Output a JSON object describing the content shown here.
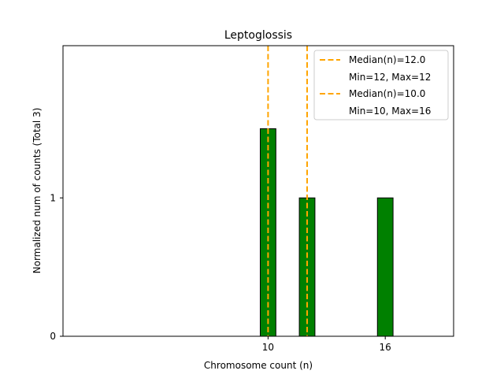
{
  "chart_data": {
    "type": "bar",
    "title": "Leptoglossis",
    "xlabel": "Chromosome count (n)",
    "ylabel": "Normalized num of counts      (Total 3)",
    "xlim": [
      -0.5,
      19.5
    ],
    "ylim": [
      0,
      2.1
    ],
    "xticks": [
      10,
      16
    ],
    "yticks": [
      0,
      1
    ],
    "bar_width": 0.8,
    "bars": [
      {
        "x": 10,
        "value": 1.5
      },
      {
        "x": 12,
        "value": 1
      },
      {
        "x": 16,
        "value": 1
      }
    ],
    "median_lines": [
      {
        "x": 10,
        "label": "Median(n)=10.0",
        "sublabel": "Min=10, Max=16"
      },
      {
        "x": 12,
        "label": "Median(n)=12.0",
        "sublabel": "Min=12, Max=12"
      }
    ],
    "legend": [
      {
        "label": "Median(n)=12.0",
        "sublabel": "Min=12, Max=12"
      },
      {
        "label": "Median(n)=10.0",
        "sublabel": "Min=10, Max=16"
      }
    ],
    "legend_position": "top-right",
    "colors": {
      "bar_fill": "#008000",
      "bar_edge": "#000000",
      "median_line": "#FFA500"
    }
  }
}
